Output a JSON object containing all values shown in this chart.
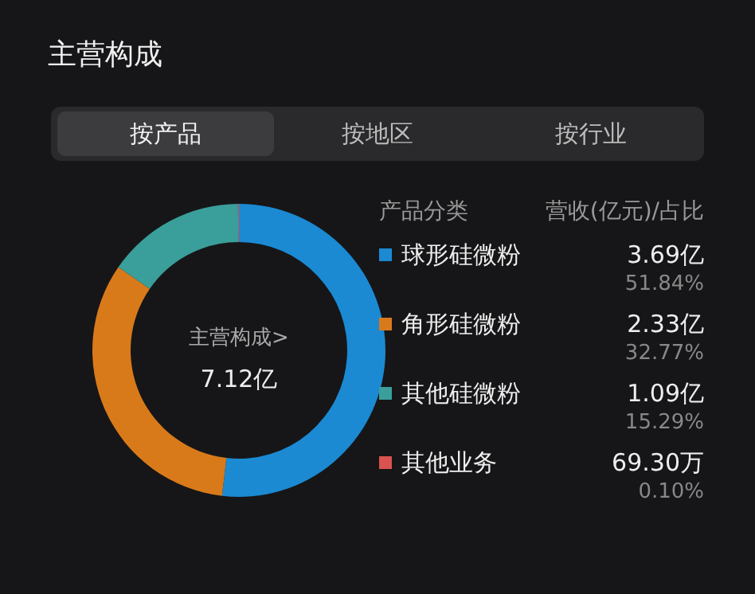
{
  "chart_data": {
    "type": "donut",
    "title": "主营构成",
    "legend_title": "产品分类",
    "categories": [
      "球形硅微粉",
      "角形硅微粉",
      "其他硅微粉",
      "其他业务"
    ],
    "values": [
      51.84,
      32.77,
      15.29,
      0.1
    ],
    "colors": [
      "#1b8ad3",
      "#d97a1a",
      "#3a9e9a",
      "#d9534f"
    ],
    "legend": "right",
    "annotations": [
      "按产品",
      "按地区",
      "按行业",
      "营收(亿元)/占比",
      "主营构成>",
      "7.12亿",
      "3.69亿",
      "2.33亿",
      "1.09亿",
      "69.30万",
      "51.84%",
      "32.77%",
      "15.29%",
      "0.10%"
    ]
  }
}
